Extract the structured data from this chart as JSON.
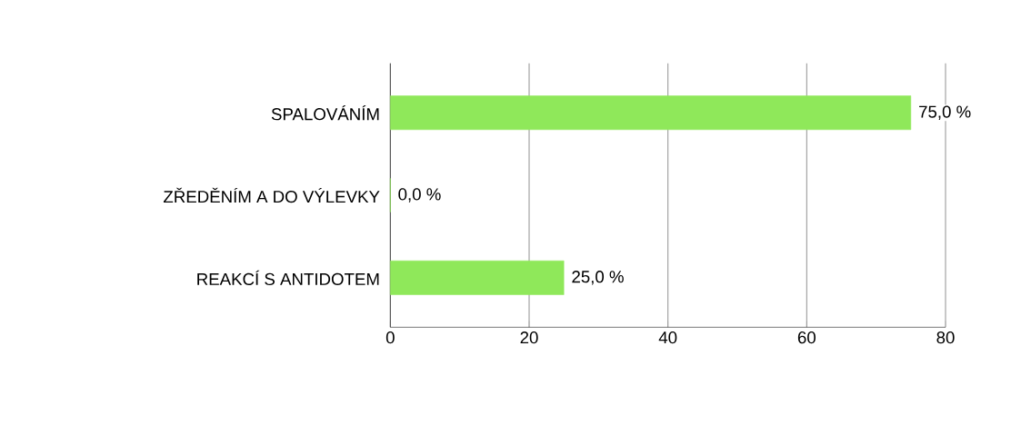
{
  "chart_data": {
    "type": "bar",
    "orientation": "horizontal",
    "categories": [
      "SPALOVÁNÍM",
      "ZŘEDĚNÍM  A DO VÝLEVKY",
      "REAKCÍ S ANTIDOTEM"
    ],
    "values": [
      75,
      0,
      25
    ],
    "value_labels": [
      "75,0 %",
      "0,0 %",
      "25,0 %"
    ],
    "color": "#8fe85a",
    "xlim": [
      0,
      80
    ],
    "xticks": [
      0,
      20,
      40,
      60,
      80
    ],
    "grid": "x"
  }
}
